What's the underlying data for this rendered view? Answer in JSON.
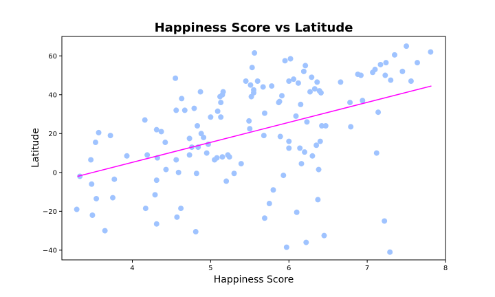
{
  "chart_data": {
    "type": "scatter",
    "title": "Happiness Score vs Latitude",
    "xlabel": "Happiness Score",
    "ylabel": "Latitude",
    "xlim": [
      3.1,
      8.0
    ],
    "ylim": [
      -45,
      70
    ],
    "xticks": [
      4,
      5,
      6,
      7,
      8
    ],
    "yticks": [
      -40,
      -20,
      0,
      20,
      40,
      60
    ],
    "grid": false,
    "point_color": "#9fc3ff",
    "line_color": "#ff00ff",
    "regression_line": {
      "x": [
        3.3,
        7.82
      ],
      "y": [
        -2,
        44.5
      ]
    },
    "points": [
      [
        3.29,
        -19
      ],
      [
        3.33,
        -2
      ],
      [
        3.47,
        6.5
      ],
      [
        3.48,
        -6
      ],
      [
        3.49,
        -22
      ],
      [
        3.53,
        15.5
      ],
      [
        3.54,
        -13.5
      ],
      [
        3.57,
        20.5
      ],
      [
        3.65,
        -30
      ],
      [
        3.72,
        19
      ],
      [
        3.75,
        -13
      ],
      [
        3.77,
        -3.5
      ],
      [
        3.93,
        8.5
      ],
      [
        4.16,
        27
      ],
      [
        4.17,
        -18.5
      ],
      [
        4.19,
        9
      ],
      [
        4.29,
        -11.5
      ],
      [
        4.31,
        22
      ],
      [
        4.31,
        -4
      ],
      [
        4.31,
        -26.5
      ],
      [
        4.32,
        7.5
      ],
      [
        4.37,
        21
      ],
      [
        4.42,
        15.5
      ],
      [
        4.43,
        1.5
      ],
      [
        4.55,
        48.5
      ],
      [
        4.56,
        32
      ],
      [
        4.56,
        6.5
      ],
      [
        4.57,
        -23
      ],
      [
        4.59,
        0
      ],
      [
        4.62,
        -18.5
      ],
      [
        4.63,
        38
      ],
      [
        4.67,
        32
      ],
      [
        4.73,
        17.5
      ],
      [
        4.73,
        9
      ],
      [
        4.76,
        13
      ],
      [
        4.79,
        33
      ],
      [
        4.81,
        -30.5
      ],
      [
        4.82,
        -0.5
      ],
      [
        4.83,
        24
      ],
      [
        4.84,
        13
      ],
      [
        4.87,
        41.5
      ],
      [
        4.88,
        20
      ],
      [
        4.91,
        18
      ],
      [
        4.95,
        10
      ],
      [
        4.97,
        14.5
      ],
      [
        5.0,
        28.5
      ],
      [
        5.05,
        6.5
      ],
      [
        5.08,
        7.5
      ],
      [
        5.09,
        31.5
      ],
      [
        5.12,
        39
      ],
      [
        5.13,
        36
      ],
      [
        5.13,
        28.5
      ],
      [
        5.15,
        40
      ],
      [
        5.15,
        8
      ],
      [
        5.16,
        41.5
      ],
      [
        5.2,
        -4.5
      ],
      [
        5.22,
        9
      ],
      [
        5.24,
        8
      ],
      [
        5.3,
        -0.5
      ],
      [
        5.39,
        4.5
      ],
      [
        5.45,
        47
      ],
      [
        5.49,
        26.5
      ],
      [
        5.5,
        22.5
      ],
      [
        5.51,
        45
      ],
      [
        5.52,
        39
      ],
      [
        5.53,
        54
      ],
      [
        5.55,
        41
      ],
      [
        5.55,
        42.5
      ],
      [
        5.56,
        61.5
      ],
      [
        5.6,
        47
      ],
      [
        5.67,
        44
      ],
      [
        5.68,
        19
      ],
      [
        5.69,
        30.5
      ],
      [
        5.69,
        -23.5
      ],
      [
        5.75,
        -16
      ],
      [
        5.78,
        44.5
      ],
      [
        5.8,
        -9
      ],
      [
        5.87,
        36
      ],
      [
        5.88,
        36.5
      ],
      [
        5.89,
        18.5
      ],
      [
        5.91,
        39.5
      ],
      [
        5.93,
        -1.5
      ],
      [
        5.95,
        57.5
      ],
      [
        5.97,
        -38.5
      ],
      [
        6.0,
        16
      ],
      [
        6.0,
        12.5
      ],
      [
        6.0,
        47
      ],
      [
        6.02,
        58.5
      ],
      [
        6.06,
        48
      ],
      [
        6.09,
        29
      ],
      [
        6.1,
        -20.5
      ],
      [
        6.12,
        46
      ],
      [
        6.14,
        12.5
      ],
      [
        6.15,
        35
      ],
      [
        6.16,
        4.5
      ],
      [
        6.19,
        52
      ],
      [
        6.2,
        10.5
      ],
      [
        6.21,
        55
      ],
      [
        6.22,
        -36
      ],
      [
        6.23,
        26
      ],
      [
        6.27,
        41.5
      ],
      [
        6.29,
        49
      ],
      [
        6.3,
        8.5
      ],
      [
        6.33,
        43
      ],
      [
        6.35,
        14
      ],
      [
        6.36,
        46.5
      ],
      [
        6.37,
        -14
      ],
      [
        6.38,
        1.5
      ],
      [
        6.39,
        42
      ],
      [
        6.4,
        16
      ],
      [
        6.41,
        41
      ],
      [
        6.42,
        24
      ],
      [
        6.45,
        -32.5
      ],
      [
        6.47,
        24
      ],
      [
        6.66,
        46.5
      ],
      [
        6.78,
        36
      ],
      [
        6.79,
        23.5
      ],
      [
        6.88,
        50.5
      ],
      [
        6.92,
        50
      ],
      [
        6.94,
        37
      ],
      [
        7.07,
        51.5
      ],
      [
        7.1,
        53
      ],
      [
        7.12,
        10
      ],
      [
        7.14,
        31
      ],
      [
        7.17,
        55.5
      ],
      [
        7.22,
        -25
      ],
      [
        7.23,
        50
      ],
      [
        7.24,
        56.5
      ],
      [
        7.29,
        -41
      ],
      [
        7.3,
        47.5
      ],
      [
        7.35,
        60.5
      ],
      [
        7.45,
        52
      ],
      [
        7.5,
        65
      ],
      [
        7.56,
        47
      ],
      [
        7.64,
        56.5
      ],
      [
        7.81,
        62
      ]
    ]
  }
}
